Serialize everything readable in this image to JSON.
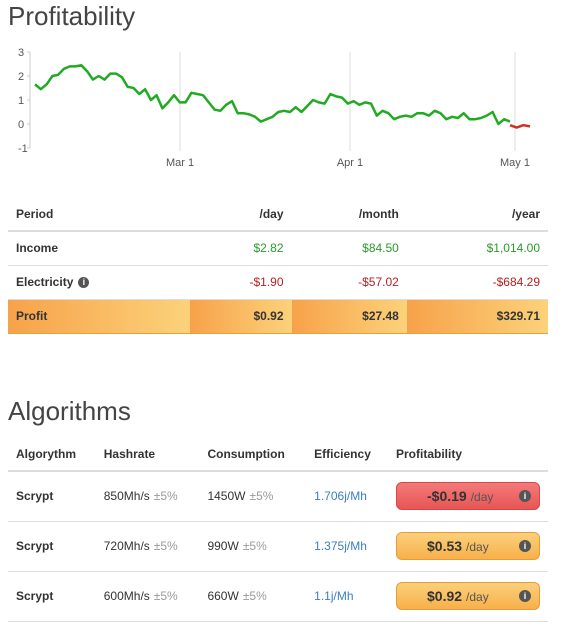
{
  "profitability": {
    "title": "Profitability",
    "chart_data": {
      "type": "line",
      "x_tick_labels": [
        "Mar 1",
        "Apr 1",
        "May 1"
      ],
      "y_tick_labels": [
        "3",
        "2",
        "1",
        "0",
        "-1"
      ],
      "ylim": [
        -1,
        3
      ],
      "series": [
        {
          "color": "#22aa22",
          "values": [
            1.65,
            1.45,
            1.65,
            2.0,
            2.05,
            2.3,
            2.4,
            2.4,
            2.45,
            2.2,
            1.85,
            2.0,
            1.85,
            2.1,
            2.1,
            1.95,
            1.55,
            1.5,
            1.25,
            1.45,
            1.0,
            1.2,
            0.65,
            0.9,
            1.2,
            0.9,
            0.9,
            1.3,
            1.25,
            1.2,
            0.9,
            0.6,
            0.55,
            0.8,
            0.95,
            0.45,
            0.45,
            0.4,
            0.3,
            0.1,
            0.2,
            0.3,
            0.5,
            0.55,
            0.5,
            0.7,
            0.5,
            0.75,
            1.0,
            0.9,
            0.85,
            1.25,
            1.15,
            1.1,
            0.85,
            0.95,
            0.8,
            0.9,
            0.85,
            0.35,
            0.55,
            0.45,
            0.2,
            0.3,
            0.35,
            0.3,
            0.45,
            0.45,
            0.35,
            0.55,
            0.45,
            0.2,
            0.3,
            0.25,
            0.45,
            0.2,
            0.2,
            0.25,
            0.35,
            0.5,
            0.0,
            0.2,
            0.1
          ]
        },
        {
          "color": "#cc3322",
          "values": [
            -0.05,
            -0.15,
            -0.05,
            -0.1
          ]
        }
      ]
    },
    "table": {
      "headers": [
        "Period",
        "/day",
        "/month",
        "/year"
      ],
      "rows": [
        {
          "label": "Income",
          "day": "$2.82",
          "month": "$84.50",
          "year": "$1,014.00"
        },
        {
          "label": "Electricity",
          "day": "-$1.90",
          "month": "-$57.02",
          "year": "-$684.29"
        },
        {
          "label": "Profit",
          "day": "$0.92",
          "month": "$27.48",
          "year": "$329.71"
        }
      ]
    }
  },
  "algorithms": {
    "title": "Algorithms",
    "headers": [
      "Algorythm",
      "Hashrate",
      "Consumption",
      "Efficiency",
      "Profitability"
    ],
    "rows": [
      {
        "name": "Scrypt",
        "hashrate": "850Mh/s",
        "hash_var": "±5%",
        "consumption": "1450W",
        "cons_var": "±5%",
        "efficiency": "1.706j/Mh",
        "profit": "-$0.19",
        "unit": "/day"
      },
      {
        "name": "Scrypt",
        "hashrate": "720Mh/s",
        "hash_var": "±5%",
        "consumption": "990W",
        "cons_var": "±5%",
        "efficiency": "1.375j/Mh",
        "profit": "$0.53",
        "unit": "/day"
      },
      {
        "name": "Scrypt",
        "hashrate": "600Mh/s",
        "hash_var": "±5%",
        "consumption": "660W",
        "cons_var": "±5%",
        "efficiency": "1.1j/Mh",
        "profit": "$0.92",
        "unit": "/day"
      }
    ]
  },
  "icons": {
    "info": "info-circle-icon"
  },
  "info_glyph": "i"
}
